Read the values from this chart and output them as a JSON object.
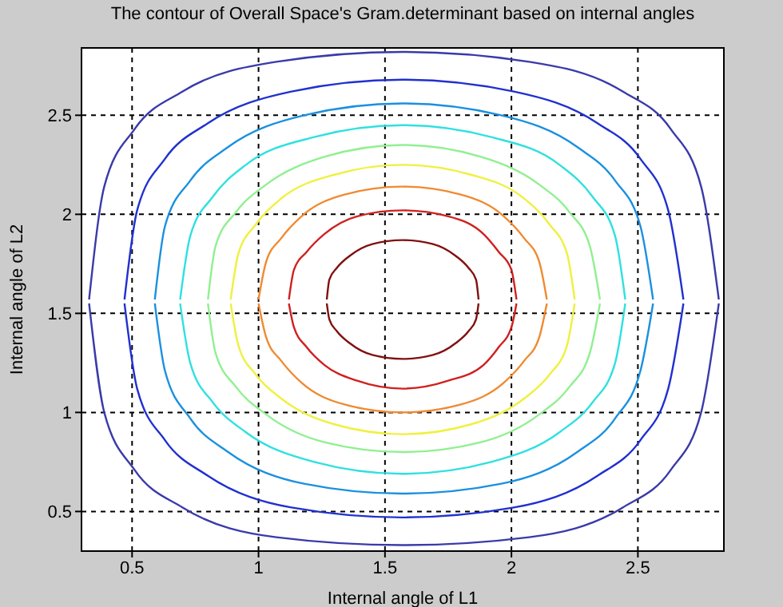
{
  "chart_data": {
    "type": "line",
    "title": "The contour of Overall Space's Gram.determinant based on internal angles",
    "xlabel": "Internal angle of L1",
    "ylabel": "Internal angle of L2",
    "xlim": [
      0.3,
      2.84
    ],
    "ylim": [
      0.3,
      2.84
    ],
    "xticks": [
      0.5,
      1,
      1.5,
      2,
      2.5
    ],
    "yticks": [
      0.5,
      1,
      1.5,
      2,
      2.5
    ],
    "grid": true,
    "marker": "none",
    "line_style": "solid",
    "series": [
      {
        "color": "#801010",
        "x": [
          1.27,
          1.28,
          1.31,
          1.36,
          1.45,
          1.57,
          1.69,
          1.78,
          1.83,
          1.86,
          1.87
        ],
        "values": [
          1.57,
          1.67,
          1.73,
          1.79,
          1.85,
          1.87,
          1.85,
          1.79,
          1.73,
          1.67,
          1.57
        ]
      },
      {
        "color": "#801010",
        "x": [
          1.27,
          1.28,
          1.31,
          1.36,
          1.45,
          1.57,
          1.69,
          1.78,
          1.83,
          1.86,
          1.87
        ],
        "values": [
          1.55,
          1.47,
          1.41,
          1.35,
          1.29,
          1.27,
          1.29,
          1.35,
          1.41,
          1.47,
          1.55
        ]
      },
      {
        "color": "#d02020",
        "x": [
          1.12,
          1.14,
          1.19,
          1.26,
          1.39,
          1.57,
          1.75,
          1.89,
          1.95,
          2.0,
          2.02
        ],
        "values": [
          1.57,
          1.72,
          1.81,
          1.9,
          1.99,
          2.02,
          1.99,
          1.9,
          1.81,
          1.72,
          1.57
        ]
      },
      {
        "color": "#d02020",
        "x": [
          1.12,
          1.14,
          1.19,
          1.26,
          1.39,
          1.57,
          1.75,
          1.89,
          1.95,
          2.0,
          2.02
        ],
        "values": [
          1.55,
          1.43,
          1.33,
          1.24,
          1.16,
          1.12,
          1.16,
          1.24,
          1.33,
          1.43,
          1.55
        ]
      },
      {
        "color": "#f08a30",
        "x": [
          1.0,
          1.03,
          1.09,
          1.17,
          1.34,
          1.57,
          1.8,
          1.97,
          2.05,
          2.11,
          2.14
        ],
        "values": [
          1.57,
          1.76,
          1.88,
          1.99,
          2.1,
          2.14,
          2.1,
          1.99,
          1.88,
          1.76,
          1.57
        ]
      },
      {
        "color": "#f08a30",
        "x": [
          1.0,
          1.03,
          1.09,
          1.17,
          1.34,
          1.57,
          1.8,
          1.97,
          2.05,
          2.11,
          2.14
        ],
        "values": [
          1.55,
          1.38,
          1.26,
          1.15,
          1.04,
          1.0,
          1.04,
          1.15,
          1.26,
          1.38,
          1.55
        ]
      },
      {
        "color": "#f0f040",
        "x": [
          0.89,
          0.92,
          0.99,
          1.09,
          1.3,
          1.57,
          1.84,
          2.05,
          2.15,
          2.22,
          2.25
        ],
        "values": [
          1.57,
          1.8,
          1.95,
          2.08,
          2.2,
          2.25,
          2.2,
          2.08,
          1.95,
          1.8,
          1.57
        ]
      },
      {
        "color": "#f0f040",
        "x": [
          0.89,
          0.92,
          0.99,
          1.09,
          1.3,
          1.57,
          1.84,
          2.05,
          2.15,
          2.22,
          2.25
        ],
        "values": [
          1.55,
          1.34,
          1.19,
          1.07,
          0.94,
          0.89,
          0.94,
          1.07,
          1.19,
          1.34,
          1.55
        ]
      },
      {
        "color": "#90f090",
        "x": [
          0.8,
          0.83,
          0.91,
          1.03,
          1.26,
          1.57,
          1.88,
          2.11,
          2.23,
          2.31,
          2.35
        ],
        "values": [
          1.57,
          1.84,
          2.01,
          2.15,
          2.29,
          2.35,
          2.29,
          2.15,
          2.01,
          1.84,
          1.57
        ]
      },
      {
        "color": "#90f090",
        "x": [
          0.8,
          0.83,
          0.91,
          1.03,
          1.26,
          1.57,
          1.88,
          2.11,
          2.23,
          2.31,
          2.35
        ],
        "values": [
          1.55,
          1.3,
          1.13,
          0.99,
          0.85,
          0.8,
          0.85,
          0.99,
          1.13,
          1.3,
          1.55
        ]
      },
      {
        "color": "#30e0e0",
        "x": [
          0.69,
          0.73,
          0.82,
          0.95,
          1.22,
          1.57,
          1.92,
          2.19,
          2.32,
          2.41,
          2.45
        ],
        "values": [
          1.57,
          1.89,
          2.09,
          2.25,
          2.39,
          2.45,
          2.39,
          2.25,
          2.09,
          1.89,
          1.57
        ]
      },
      {
        "color": "#30e0e0",
        "x": [
          0.69,
          0.73,
          0.82,
          0.95,
          1.22,
          1.57,
          1.92,
          2.19,
          2.32,
          2.41,
          2.45
        ],
        "values": [
          1.55,
          1.25,
          1.05,
          0.9,
          0.75,
          0.69,
          0.75,
          0.9,
          1.05,
          1.25,
          1.55
        ]
      },
      {
        "color": "#1a90e0",
        "x": [
          0.59,
          0.63,
          0.73,
          0.88,
          1.18,
          1.57,
          1.96,
          2.26,
          2.41,
          2.51,
          2.56
        ],
        "values": [
          1.57,
          1.94,
          2.17,
          2.34,
          2.5,
          2.56,
          2.5,
          2.34,
          2.17,
          1.94,
          1.57
        ]
      },
      {
        "color": "#1a90e0",
        "x": [
          0.59,
          0.63,
          0.73,
          0.88,
          1.18,
          1.57,
          1.96,
          2.26,
          2.41,
          2.51,
          2.56
        ],
        "values": [
          1.55,
          1.21,
          0.97,
          0.8,
          0.64,
          0.59,
          0.64,
          0.8,
          0.97,
          1.21,
          1.55
        ]
      },
      {
        "color": "#2030d0",
        "x": [
          0.47,
          0.52,
          0.63,
          0.8,
          1.13,
          1.57,
          2.01,
          2.34,
          2.51,
          2.62,
          2.68
        ],
        "values": [
          1.57,
          2.02,
          2.28,
          2.46,
          2.62,
          2.68,
          2.62,
          2.46,
          2.28,
          2.02,
          1.57
        ]
      },
      {
        "color": "#2030d0",
        "x": [
          0.47,
          0.52,
          0.63,
          0.8,
          1.13,
          1.57,
          2.01,
          2.34,
          2.51,
          2.62,
          2.68
        ],
        "values": [
          1.55,
          1.12,
          0.86,
          0.68,
          0.52,
          0.47,
          0.52,
          0.68,
          0.86,
          1.12,
          1.55
        ]
      },
      {
        "color": "#3a3aaa",
        "x": [
          0.33,
          0.39,
          0.51,
          0.7,
          1.07,
          1.57,
          2.07,
          2.44,
          2.63,
          2.75,
          2.82
        ],
        "values": [
          1.57,
          2.14,
          2.43,
          2.62,
          2.77,
          2.82,
          2.77,
          2.62,
          2.43,
          2.14,
          1.57
        ]
      },
      {
        "color": "#3a3aaa",
        "x": [
          0.33,
          0.39,
          0.51,
          0.7,
          1.07,
          1.57,
          2.07,
          2.44,
          2.63,
          2.75,
          2.82
        ],
        "values": [
          1.55,
          1.0,
          0.71,
          0.52,
          0.37,
          0.33,
          0.37,
          0.52,
          0.71,
          1.0,
          1.55
        ]
      }
    ]
  }
}
